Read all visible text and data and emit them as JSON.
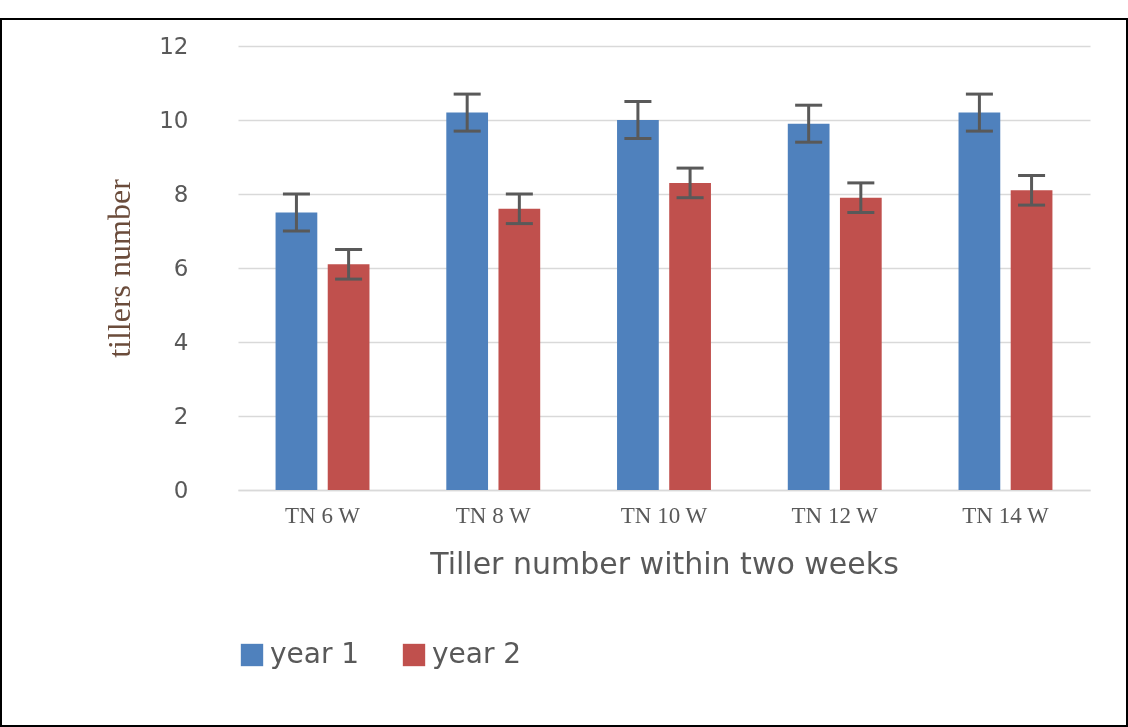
{
  "chart_data": {
    "type": "bar",
    "xlabel": "Tiller number   within two weeks",
    "ylabel": "tillers  number",
    "categories": [
      "TN 6 W",
      "TN 8 W",
      "TN 10 W",
      "TN 12 W",
      "TN 14 W"
    ],
    "series": [
      {
        "name": "year 1",
        "color": "#4f81bd",
        "values": [
          7.5,
          10.2,
          10.0,
          9.9,
          10.2
        ],
        "errors": [
          0.5,
          0.5,
          0.5,
          0.5,
          0.5
        ]
      },
      {
        "name": "year 2",
        "color": "#c0504d",
        "values": [
          6.1,
          7.6,
          8.3,
          7.9,
          8.1
        ],
        "errors": [
          0.4,
          0.4,
          0.4,
          0.4,
          0.4
        ]
      }
    ],
    "ylim": [
      0,
      12
    ],
    "yticks": [
      0,
      2,
      4,
      6,
      8,
      10,
      12
    ],
    "grid": "y",
    "legend": "bottom"
  }
}
